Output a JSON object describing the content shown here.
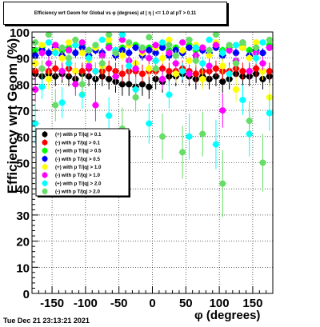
{
  "title": "Efficiency wrt Geom for Global vs φ (degrees) at | η | <= 1.0 at pT > 0.11",
  "footer": "Tue Dec 21 23:13:21 2021",
  "chart_data": {
    "type": "scatter",
    "xlabel": "φ (degrees)",
    "ylabel": "Efficiency wrt Geom (%)",
    "xlim": [
      -180,
      180
    ],
    "ylim": [
      0,
      100
    ],
    "xticks": [
      -150,
      -100,
      -50,
      0,
      50,
      100,
      150
    ],
    "yticks": [
      0,
      10,
      20,
      30,
      40,
      50,
      60,
      70,
      80,
      90,
      100
    ],
    "grid": true,
    "legend_position": "left-middle",
    "series": [
      {
        "name": "(+) with p T/|q| > 0.1",
        "color": "#000000",
        "x": [
          -175,
          -165,
          -155,
          -145,
          -135,
          -125,
          -115,
          -105,
          -95,
          -85,
          -75,
          -65,
          -55,
          -45,
          -35,
          -25,
          -15,
          -5,
          5,
          15,
          25,
          35,
          45,
          55,
          65,
          75,
          85,
          95,
          105,
          115,
          125,
          135,
          145,
          155,
          165,
          175
        ],
        "y": [
          84,
          83,
          84,
          83,
          84,
          83,
          82,
          84,
          83,
          82,
          83,
          82,
          81,
          80,
          80,
          79,
          80,
          79,
          82,
          81,
          83,
          83,
          84,
          83,
          82,
          83,
          82,
          83,
          81,
          82,
          84,
          83,
          83,
          84,
          82,
          83
        ]
      },
      {
        "name": "(-) with p T/|q| > 0.1",
        "color": "#ff0000",
        "x": [
          -175,
          -165,
          -155,
          -145,
          -135,
          -125,
          -115,
          -105,
          -95,
          -85,
          -75,
          -65,
          -55,
          -45,
          -35,
          -25,
          -15,
          -5,
          5,
          15,
          25,
          35,
          45,
          55,
          65,
          75,
          85,
          95,
          105,
          115,
          125,
          135,
          145,
          155,
          165,
          175
        ],
        "y": [
          85,
          86,
          85,
          86,
          85,
          86,
          85,
          85,
          86,
          85,
          85,
          86,
          85,
          84,
          85,
          85,
          84,
          85,
          85,
          86,
          85,
          85,
          86,
          85,
          84,
          85,
          85,
          86,
          85,
          85,
          86,
          85,
          85,
          86,
          85,
          85
        ]
      },
      {
        "name": "(+) with p T/|q| > 0.5",
        "color": "#00ff00",
        "x": [
          -175,
          -165,
          -155,
          -145,
          -135,
          -125,
          -115,
          -105,
          -95,
          -85,
          -75,
          -65,
          -55,
          -45,
          -35,
          -25,
          -15,
          -5,
          5,
          15,
          25,
          35,
          45,
          55,
          65,
          75,
          85,
          95,
          105,
          115,
          125,
          135,
          145,
          155,
          165,
          175
        ],
        "y": [
          93,
          94,
          92,
          95,
          93,
          94,
          92,
          95,
          93,
          94,
          92,
          95,
          93,
          94,
          92,
          95,
          93,
          94,
          92,
          95,
          93,
          94,
          92,
          95,
          93,
          94,
          92,
          95,
          93,
          94,
          92,
          95,
          93,
          94,
          92,
          95
        ]
      },
      {
        "name": "(-) with p T/|q| > 0.5",
        "color": "#0000ff",
        "x": [
          -175,
          -165,
          -155,
          -145,
          -135,
          -125,
          -115,
          -105,
          -95,
          -85,
          -75,
          -65,
          -55,
          -45,
          -35,
          -25,
          -15,
          -5,
          5,
          15,
          25,
          35,
          45,
          55,
          65,
          75,
          85,
          95,
          105,
          115,
          125,
          135,
          145,
          155,
          165,
          175
        ],
        "y": [
          91,
          93,
          92,
          94,
          91,
          93,
          92,
          94,
          91,
          93,
          92,
          94,
          91,
          93,
          92,
          94,
          91,
          93,
          92,
          94,
          91,
          93,
          92,
          94,
          91,
          93,
          92,
          94,
          91,
          93,
          92,
          94,
          91,
          93,
          92,
          94
        ]
      },
      {
        "name": "(+) with p T/|q| > 1.0",
        "color": "#ffff00",
        "x": [
          -175,
          -165,
          -155,
          -145,
          -135,
          -125,
          -115,
          -105,
          -95,
          -85,
          -75,
          -65,
          -55,
          -45,
          -35,
          -25,
          -15,
          -5,
          5,
          15,
          25,
          35,
          45,
          55,
          65,
          75,
          85,
          95,
          105,
          115,
          125,
          135,
          145,
          155,
          165,
          175
        ],
        "y": [
          88,
          95,
          82,
          93,
          90,
          96,
          85,
          92,
          89,
          94,
          87,
          97,
          83,
          91,
          95,
          88,
          92,
          86,
          94,
          90,
          97,
          84,
          93,
          89,
          95,
          82,
          91,
          96,
          87,
          93,
          78,
          94,
          90,
          96,
          85,
          75
        ]
      },
      {
        "name": "(-) with p T/|q| > 1.0",
        "color": "#ff00ff",
        "x": [
          -175,
          -165,
          -155,
          -145,
          -135,
          -125,
          -115,
          -105,
          -95,
          -85,
          -75,
          -65,
          -55,
          -45,
          -35,
          -25,
          -15,
          -5,
          5,
          15,
          25,
          35,
          45,
          55,
          65,
          75,
          85,
          95,
          105,
          115,
          125,
          135,
          145,
          155,
          165,
          175
        ],
        "y": [
          78,
          92,
          88,
          95,
          85,
          93,
          80,
          96,
          87,
          72,
          91,
          94,
          83,
          97,
          89,
          86,
          93,
          90,
          95,
          82,
          92,
          88,
          96,
          84,
          91,
          94,
          87,
          95,
          70,
          93,
          89,
          96,
          85,
          92,
          88,
          94
        ]
      },
      {
        "name": "(+) with p T/|q| > 2.0",
        "color": "#00ffff",
        "x": [
          -175,
          -165,
          -155,
          -145,
          -135,
          -125,
          -115,
          -105,
          -95,
          -85,
          -75,
          -65,
          -55,
          -45,
          -35,
          -25,
          -15,
          -5,
          5,
          15,
          25,
          35,
          45,
          55,
          65,
          75,
          85,
          95,
          105,
          115,
          125,
          135,
          145,
          155,
          165,
          175
        ],
        "y": [
          65,
          79,
          96,
          92,
          73,
          88,
          95,
          76,
          90,
          85,
          97,
          68,
          93,
          99,
          87,
          78,
          94,
          65,
          89,
          96,
          76,
          91,
          85,
          60,
          94,
          88,
          97,
          57,
          92,
          84,
          95,
          74,
          61,
          90,
          96,
          69
        ]
      },
      {
        "name": "(-) with p T/|q| > 2.0",
        "color": "#66dd66",
        "x": [
          -175,
          -165,
          -155,
          -145,
          -135,
          -125,
          -115,
          -105,
          -95,
          -85,
          -75,
          -65,
          -55,
          -45,
          -35,
          -25,
          -15,
          -5,
          5,
          15,
          25,
          35,
          45,
          55,
          65,
          75,
          85,
          95,
          105,
          115,
          125,
          135,
          145,
          155,
          165,
          175
        ],
        "y": [
          96,
          86,
          99,
          72,
          94,
          90,
          97,
          80,
          93,
          95,
          88,
          99,
          92,
          63,
          96,
          75,
          94,
          98,
          86,
          60,
          95,
          91,
          54,
          97,
          89,
          61,
          93,
          99,
          42,
          95,
          88,
          96,
          66,
          94,
          50,
          97
        ]
      }
    ]
  }
}
